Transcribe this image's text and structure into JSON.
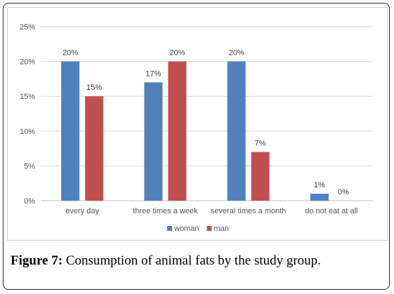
{
  "caption": {
    "label": "Figure 7:",
    "text": " Consumption of animal fats by the study group."
  },
  "chart_data": {
    "type": "bar",
    "categories": [
      "every day",
      "three times a week",
      "several times a month",
      "do not eat at all"
    ],
    "series": [
      {
        "name": "woman",
        "values": [
          20,
          17,
          20,
          1
        ],
        "labels": [
          "20%",
          "17%",
          "20%",
          "1%"
        ],
        "color": "#4f81bd"
      },
      {
        "name": "man",
        "values": [
          15,
          20,
          7,
          0
        ],
        "labels": [
          "15%",
          "20%",
          "7%",
          "0%"
        ],
        "color": "#c0504d"
      }
    ],
    "ylim": [
      0,
      25
    ],
    "yticks": [
      "0%",
      "5%",
      "10%",
      "15%",
      "20%",
      "25%"
    ],
    "grid": true,
    "legend": "bottom"
  }
}
